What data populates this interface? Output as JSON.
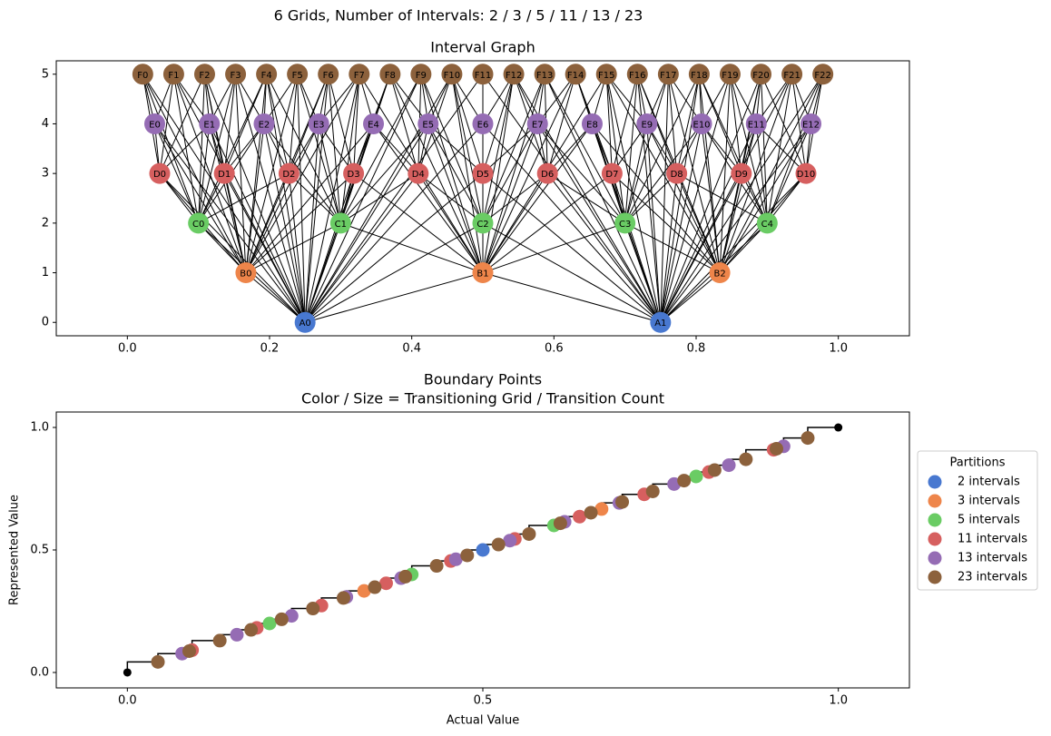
{
  "title": "6 Grids, Number of Intervals: 2 / 3 / 5 / 11 / 13 / 23",
  "chart_data": [
    {
      "type": "graph",
      "title": "Interval Graph",
      "xlim": [
        -0.1,
        1.1
      ],
      "xticks": [
        {
          "value": 0,
          "label": "0.0"
        },
        {
          "value": 0.2,
          "label": "0.2"
        },
        {
          "value": 0.4,
          "label": "0.4"
        },
        {
          "value": 0.6,
          "label": "0.6"
        },
        {
          "value": 0.8,
          "label": "0.8"
        },
        {
          "value": 1,
          "label": "1.0"
        }
      ],
      "ylim": [
        -0.27,
        5.27
      ],
      "yticks": [
        0,
        1,
        2,
        3,
        4,
        5
      ],
      "levels": [
        {
          "y": 0,
          "color": "#4878d0",
          "nodes": [
            {
              "label": "A0",
              "x": 0.25
            },
            {
              "label": "A1",
              "x": 0.75
            }
          ]
        },
        {
          "y": 1,
          "color": "#ee854a",
          "nodes": [
            {
              "label": "B0",
              "x": 0.1667
            },
            {
              "label": "B1",
              "x": 0.5
            },
            {
              "label": "B2",
              "x": 0.8333
            }
          ]
        },
        {
          "y": 2,
          "color": "#6acc64",
          "nodes": [
            {
              "label": "C0",
              "x": 0.1
            },
            {
              "label": "C1",
              "x": 0.3
            },
            {
              "label": "C2",
              "x": 0.5
            },
            {
              "label": "C3",
              "x": 0.7
            },
            {
              "label": "C4",
              "x": 0.9
            }
          ]
        },
        {
          "y": 3,
          "color": "#d65f5f",
          "nodes": [
            {
              "label": "D0",
              "x": 0.0455
            },
            {
              "label": "D1",
              "x": 0.1364
            },
            {
              "label": "D2",
              "x": 0.2273
            },
            {
              "label": "D3",
              "x": 0.3182
            },
            {
              "label": "D4",
              "x": 0.4091
            },
            {
              "label": "D5",
              "x": 0.5
            },
            {
              "label": "D6",
              "x": 0.5909
            },
            {
              "label": "D7",
              "x": 0.6818
            },
            {
              "label": "D8",
              "x": 0.7727
            },
            {
              "label": "D9",
              "x": 0.8636
            },
            {
              "label": "D10",
              "x": 0.9545
            }
          ]
        },
        {
          "y": 4,
          "color": "#956cb4",
          "nodes": [
            {
              "label": "E0",
              "x": 0.0385
            },
            {
              "label": "E1",
              "x": 0.1154
            },
            {
              "label": "E2",
              "x": 0.1923
            },
            {
              "label": "E3",
              "x": 0.2692
            },
            {
              "label": "E4",
              "x": 0.3462
            },
            {
              "label": "E5",
              "x": 0.4231
            },
            {
              "label": "E6",
              "x": 0.5
            },
            {
              "label": "E7",
              "x": 0.5769
            },
            {
              "label": "E8",
              "x": 0.6538
            },
            {
              "label": "E9",
              "x": 0.7308
            },
            {
              "label": "E10",
              "x": 0.8077
            },
            {
              "label": "E11",
              "x": 0.8846
            },
            {
              "label": "E12",
              "x": 0.9615
            }
          ]
        },
        {
          "y": 5,
          "color": "#8c613c",
          "nodes": [
            {
              "label": "F0",
              "x": 0.0217
            },
            {
              "label": "F1",
              "x": 0.0652
            },
            {
              "label": "F2",
              "x": 0.1087
            },
            {
              "label": "F3",
              "x": 0.1522
            },
            {
              "label": "F4",
              "x": 0.1957
            },
            {
              "label": "F5",
              "x": 0.2391
            },
            {
              "label": "F6",
              "x": 0.2826
            },
            {
              "label": "F7",
              "x": 0.3261
            },
            {
              "label": "F8",
              "x": 0.3696
            },
            {
              "label": "F9",
              "x": 0.413
            },
            {
              "label": "F10",
              "x": 0.4565
            },
            {
              "label": "F11",
              "x": 0.5
            },
            {
              "label": "F12",
              "x": 0.5435
            },
            {
              "label": "F13",
              "x": 0.587
            },
            {
              "label": "F14",
              "x": 0.6304
            },
            {
              "label": "F15",
              "x": 0.6739
            },
            {
              "label": "F16",
              "x": 0.7174
            },
            {
              "label": "F17",
              "x": 0.7609
            },
            {
              "label": "F18",
              "x": 0.8043
            },
            {
              "label": "F19",
              "x": 0.8478
            },
            {
              "label": "F20",
              "x": 0.8913
            },
            {
              "label": "F21",
              "x": 0.9348
            },
            {
              "label": "F22",
              "x": 0.9783
            }
          ]
        }
      ]
    },
    {
      "type": "scatter",
      "title": "Boundary Points",
      "subtitle": "Color / Size = Transitioning Grid / Transition Count",
      "xlabel": "Actual Value",
      "ylabel": "Represented Value",
      "xlim": [
        -0.1,
        1.1
      ],
      "xticks": [
        {
          "value": 0,
          "label": "0.0"
        },
        {
          "value": 0.5,
          "label": "0.5"
        },
        {
          "value": 1,
          "label": "1.0"
        }
      ],
      "ylim": [
        -0.063,
        1.063
      ],
      "yticks": [
        {
          "value": 0,
          "label": "0.0"
        },
        {
          "value": 0.5,
          "label": "0.5"
        },
        {
          "value": 1,
          "label": "1.0"
        }
      ],
      "legend_title": "Partitions",
      "legend": "center right",
      "series": [
        {
          "name": "2 intervals",
          "color": "#4878d0",
          "x": [
            0.5
          ],
          "y": [
            0.5
          ]
        },
        {
          "name": "3 intervals",
          "color": "#ee854a",
          "x": [
            0.333,
            0.667
          ],
          "y": [
            0.333,
            0.667
          ]
        },
        {
          "name": "5 intervals",
          "color": "#6acc64",
          "x": [
            0.2,
            0.4,
            0.6,
            0.8
          ],
          "y": [
            0.2,
            0.4,
            0.6,
            0.8
          ]
        },
        {
          "name": "11 intervals",
          "color": "#d65f5f",
          "x": [
            0.091,
            0.182,
            0.273,
            0.364,
            0.455,
            0.545,
            0.636,
            0.727,
            0.818,
            0.909
          ],
          "y": [
            0.091,
            0.182,
            0.273,
            0.364,
            0.455,
            0.545,
            0.636,
            0.727,
            0.818,
            0.909
          ]
        },
        {
          "name": "13 intervals",
          "color": "#956cb4",
          "x": [
            0.077,
            0.154,
            0.231,
            0.308,
            0.385,
            0.462,
            0.538,
            0.615,
            0.692,
            0.769,
            0.846,
            0.923
          ],
          "y": [
            0.077,
            0.154,
            0.231,
            0.308,
            0.385,
            0.462,
            0.538,
            0.615,
            0.692,
            0.769,
            0.846,
            0.923
          ]
        },
        {
          "name": "23 intervals",
          "color": "#8c613c",
          "x": [
            0.043,
            0.087,
            0.13,
            0.174,
            0.217,
            0.261,
            0.304,
            0.348,
            0.391,
            0.435,
            0.478,
            0.522,
            0.565,
            0.609,
            0.652,
            0.696,
            0.739,
            0.783,
            0.826,
            0.87,
            0.913,
            0.957
          ],
          "y": [
            0.043,
            0.087,
            0.13,
            0.174,
            0.217,
            0.261,
            0.304,
            0.348,
            0.391,
            0.435,
            0.478,
            0.522,
            0.565,
            0.609,
            0.652,
            0.696,
            0.739,
            0.783,
            0.826,
            0.87,
            0.913,
            0.957
          ]
        }
      ],
      "step_line": {
        "color": "#000000",
        "x": [
          0,
          0.043,
          0.077,
          0.087,
          0.091,
          0.13,
          0.154,
          0.174,
          0.182,
          0.2,
          0.217,
          0.231,
          0.261,
          0.273,
          0.304,
          0.308,
          0.333,
          0.348,
          0.364,
          0.385,
          0.391,
          0.4,
          0.435,
          0.455,
          0.462,
          0.478,
          0.5,
          0.522,
          0.538,
          0.545,
          0.565,
          0.6,
          0.609,
          0.615,
          0.636,
          0.652,
          0.667,
          0.692,
          0.696,
          0.727,
          0.739,
          0.769,
          0.783,
          0.8,
          0.818,
          0.826,
          0.846,
          0.87,
          0.909,
          0.913,
          0.923,
          0.957,
          1
        ],
        "y": [
          0,
          0.043,
          0.077,
          0.087,
          0.091,
          0.13,
          0.154,
          0.174,
          0.182,
          0.2,
          0.217,
          0.231,
          0.261,
          0.273,
          0.304,
          0.308,
          0.333,
          0.348,
          0.364,
          0.385,
          0.391,
          0.4,
          0.435,
          0.455,
          0.462,
          0.478,
          0.5,
          0.522,
          0.538,
          0.545,
          0.565,
          0.6,
          0.609,
          0.615,
          0.636,
          0.652,
          0.667,
          0.692,
          0.696,
          0.727,
          0.739,
          0.769,
          0.783,
          0.8,
          0.818,
          0.826,
          0.846,
          0.87,
          0.909,
          0.913,
          0.923,
          0.957,
          1
        ]
      },
      "endpoints": {
        "color": "#000000",
        "x": [
          0,
          1
        ],
        "y": [
          0,
          1
        ]
      }
    }
  ]
}
